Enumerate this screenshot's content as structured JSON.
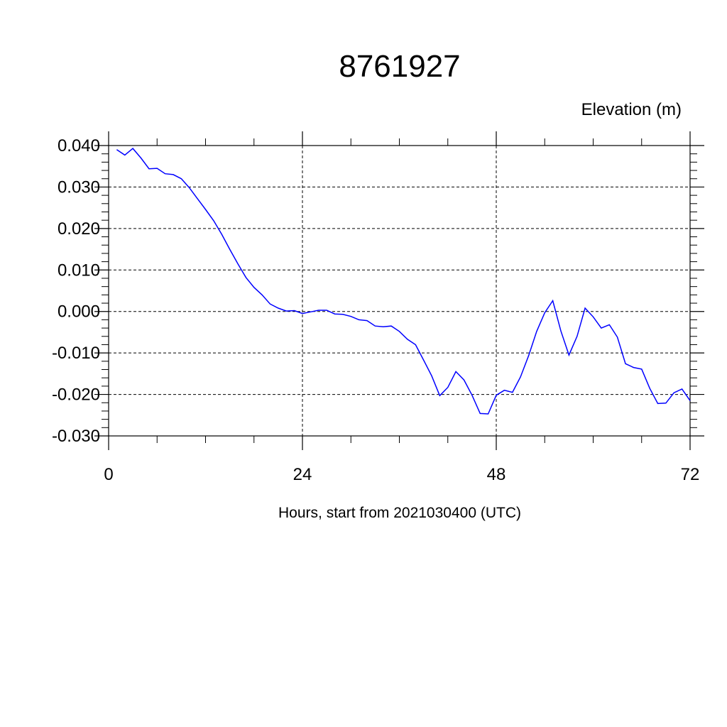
{
  "chart_data": {
    "type": "line",
    "title": "8761927",
    "ylabel": "Elevation (m)",
    "xlabel": "Hours, start from 2021030400 (UTC)",
    "xlim": [
      0,
      72
    ],
    "ylim": [
      -0.03,
      0.04
    ],
    "xticks": [
      0,
      24,
      48,
      72
    ],
    "xtick_labels": [
      "0",
      "24",
      "48",
      "72"
    ],
    "yticks": [
      0.04,
      0.03,
      0.02,
      0.01,
      0.0,
      -0.01,
      -0.02,
      -0.03
    ],
    "ytick_labels": [
      "0.040",
      "0.030",
      "0.020",
      "0.010",
      "0.000",
      "-0.010",
      "-0.020",
      "-0.030"
    ],
    "grid": true,
    "line_color": "#0000ff",
    "series": [
      {
        "x": [
          1,
          2,
          3,
          4,
          5,
          6,
          7,
          8,
          9,
          10,
          11,
          12,
          13,
          14,
          15,
          16,
          17,
          18,
          19,
          20,
          21,
          22,
          23,
          24,
          25,
          26,
          27,
          28,
          29,
          30,
          31,
          32,
          33,
          34,
          35,
          36,
          37,
          38,
          39,
          40,
          41,
          42,
          43,
          44,
          45,
          46,
          47,
          48,
          49,
          50,
          51,
          52,
          53,
          54,
          55,
          56,
          57,
          58,
          59,
          60,
          61,
          62,
          63,
          64,
          65,
          66,
          67,
          68,
          69,
          70,
          71,
          72
        ],
        "values": [
          0.039,
          0.0377,
          0.0393,
          0.037,
          0.0344,
          0.0345,
          0.0332,
          0.033,
          0.032,
          0.0298,
          0.0272,
          0.0246,
          0.0219,
          0.0186,
          0.015,
          0.0115,
          0.0082,
          0.0058,
          0.004,
          0.0018,
          0.0008,
          0.0001,
          0.0002,
          -0.0005,
          -0.0001,
          0.0003,
          0.0003,
          -0.0006,
          -0.0007,
          -0.0012,
          -0.002,
          -0.0022,
          -0.0035,
          -0.0037,
          -0.0035,
          -0.0048,
          -0.0067,
          -0.008,
          -0.0117,
          -0.0155,
          -0.0203,
          -0.0183,
          -0.0145,
          -0.0165,
          -0.0202,
          -0.0246,
          -0.0247,
          -0.0202,
          -0.019,
          -0.0195,
          -0.0158,
          -0.0107,
          -0.0048,
          -0.0003,
          0.0026,
          -0.0047,
          -0.0105,
          -0.006,
          0.0008,
          -0.0013,
          -0.004,
          -0.0032,
          -0.0062,
          -0.0126,
          -0.0135,
          -0.0139,
          -0.0185,
          -0.0222,
          -0.0221,
          -0.0196,
          -0.0187,
          -0.0215
        ]
      }
    ]
  }
}
